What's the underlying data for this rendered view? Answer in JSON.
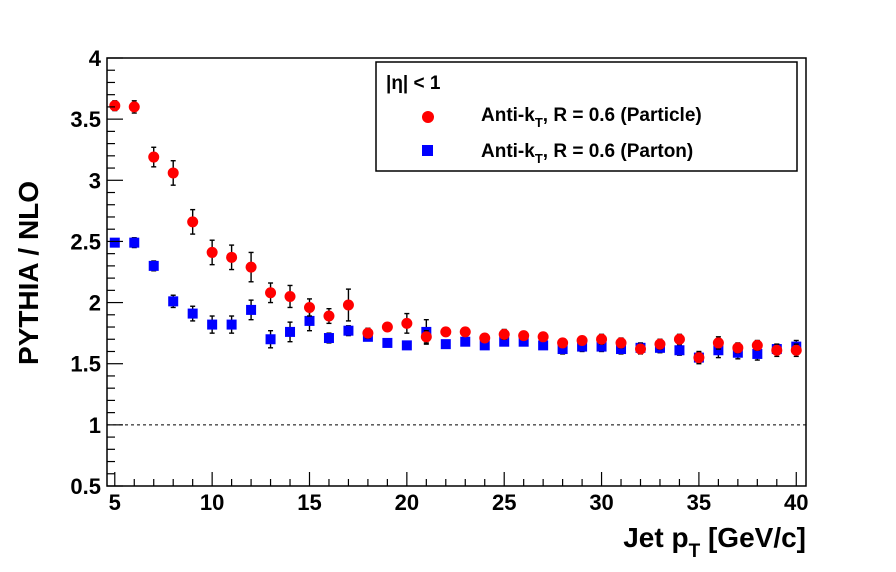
{
  "chart_data": {
    "type": "scatter",
    "xlabel": "Jet p",
    "xlabel_sub": "T",
    "xlabel_unit": " [GeV/c]",
    "ylabel": "PYTHIA / NLO",
    "xlim": [
      4.6,
      40.5
    ],
    "ylim": [
      0.5,
      4
    ],
    "x_ticks": [
      "5",
      "10",
      "15",
      "20",
      "25",
      "30",
      "35",
      "40"
    ],
    "y_ticks": [
      "0.5",
      "1",
      "1.5",
      "2",
      "2.5",
      "3",
      "3.5",
      "4"
    ],
    "reference_line": 1,
    "legend": {
      "header": "|η| < 1",
      "placement": "top-right"
    },
    "colors": {
      "particle": "#ff0000",
      "parton": "#0000ff",
      "frame": "#000000"
    },
    "series": [
      {
        "name": "Anti-kT, R = 0.6 (Particle)",
        "name_main": "Anti-k",
        "name_sub": "T",
        "name_rest": ", R = 0.6 (Particle)",
        "marker": "circle",
        "x": [
          5,
          6,
          7,
          8,
          9,
          10,
          11,
          12,
          13,
          14,
          15,
          16,
          17,
          18,
          19,
          20,
          21,
          22,
          23,
          24,
          25,
          26,
          27,
          28,
          29,
          30,
          31,
          32,
          33,
          34,
          35,
          36,
          37,
          38,
          39,
          40
        ],
        "y": [
          3.61,
          3.6,
          3.19,
          3.06,
          2.66,
          2.41,
          2.37,
          2.29,
          2.08,
          2.05,
          1.96,
          1.89,
          1.98,
          1.75,
          1.8,
          1.83,
          1.72,
          1.76,
          1.76,
          1.71,
          1.74,
          1.73,
          1.72,
          1.67,
          1.69,
          1.7,
          1.67,
          1.62,
          1.66,
          1.7,
          1.55,
          1.67,
          1.63,
          1.65,
          1.61,
          1.61
        ],
        "err": [
          0.04,
          0.05,
          0.08,
          0.1,
          0.1,
          0.1,
          0.1,
          0.12,
          0.08,
          0.09,
          0.07,
          0.06,
          0.13,
          0.04,
          0.03,
          0.08,
          0.05,
          0.03,
          0.03,
          0.03,
          0.04,
          0.03,
          0.03,
          0.03,
          0.03,
          0.04,
          0.04,
          0.04,
          0.04,
          0.04,
          0.04,
          0.05,
          0.04,
          0.04,
          0.05,
          0.05
        ]
      },
      {
        "name": "Anti-kT, R = 0.6 (Parton)",
        "name_main": "Anti-k",
        "name_sub": "T",
        "name_rest": ", R = 0.6 (Parton)",
        "marker": "square",
        "x": [
          5,
          6,
          7,
          8,
          9,
          10,
          11,
          12,
          13,
          14,
          15,
          16,
          17,
          18,
          19,
          20,
          21,
          22,
          23,
          24,
          25,
          26,
          27,
          28,
          29,
          30,
          31,
          32,
          33,
          34,
          35,
          36,
          37,
          38,
          39,
          40
        ],
        "y": [
          2.49,
          2.49,
          2.3,
          2.01,
          1.91,
          1.82,
          1.82,
          1.94,
          1.7,
          1.76,
          1.85,
          1.71,
          1.77,
          1.72,
          1.67,
          1.65,
          1.76,
          1.66,
          1.68,
          1.65,
          1.68,
          1.68,
          1.65,
          1.62,
          1.64,
          1.64,
          1.62,
          1.63,
          1.63,
          1.61,
          1.55,
          1.61,
          1.59,
          1.58,
          1.62,
          1.64
        ],
        "err": [
          0.03,
          0.04,
          0.04,
          0.05,
          0.06,
          0.07,
          0.07,
          0.08,
          0.07,
          0.08,
          0.08,
          0.04,
          0.04,
          0.03,
          0.03,
          0.03,
          0.1,
          0.03,
          0.03,
          0.03,
          0.03,
          0.03,
          0.03,
          0.04,
          0.04,
          0.04,
          0.04,
          0.04,
          0.04,
          0.04,
          0.05,
          0.06,
          0.05,
          0.05,
          0.04,
          0.05
        ]
      }
    ]
  }
}
